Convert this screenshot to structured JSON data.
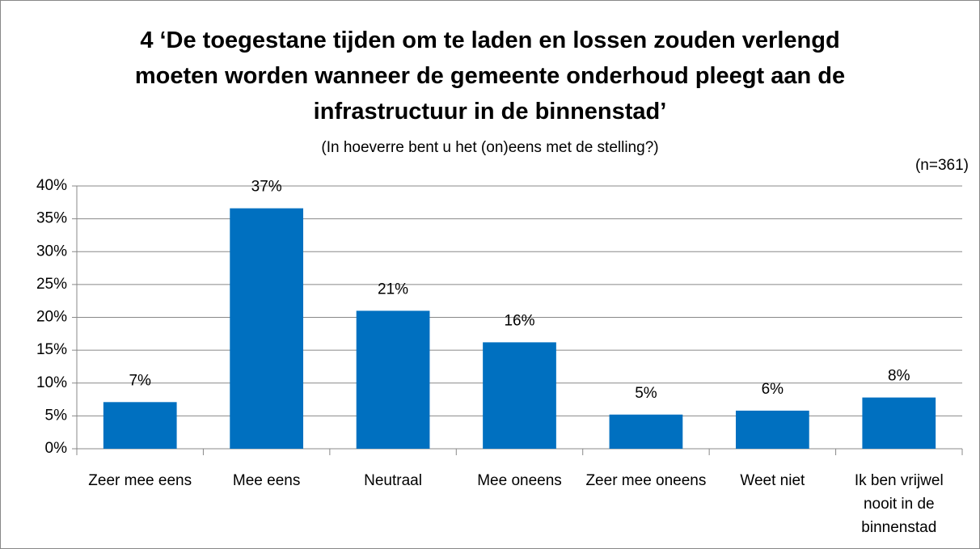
{
  "chart_data": {
    "type": "bar",
    "title": "4 ‘De toegestane tijden om te laden en lossen zouden verlengd moeten worden wanneer de gemeente onderhoud pleegt aan de infrastructuur in de binnenstad’",
    "subtitle": "(In hoeverre bent u het (on)eens met de stelling?)",
    "annotation": "(n=361)",
    "categories": [
      "Zeer mee eens",
      "Mee eens",
      "Neutraal",
      "Mee oneens",
      "Zeer mee oneens",
      "Weet niet",
      "Ik ben vrijwel nooit in de binnenstad"
    ],
    "values": [
      7.1,
      36.6,
      21.0,
      16.2,
      5.2,
      5.8,
      7.8
    ],
    "value_labels": [
      "7%",
      "37%",
      "21%",
      "16%",
      "5%",
      "6%",
      "8%"
    ],
    "color": "#0070c0",
    "ylim": [
      0,
      40
    ],
    "yticks": [
      {
        "value": 0,
        "label": "0%"
      },
      {
        "value": 5,
        "label": "5%"
      },
      {
        "value": 10,
        "label": "10%"
      },
      {
        "value": 15,
        "label": "15%"
      },
      {
        "value": 20,
        "label": "20%"
      },
      {
        "value": 25,
        "label": "25%"
      },
      {
        "value": 30,
        "label": "30%"
      },
      {
        "value": 35,
        "label": "35%"
      },
      {
        "value": 40,
        "label": "40%"
      }
    ],
    "grid": true
  }
}
